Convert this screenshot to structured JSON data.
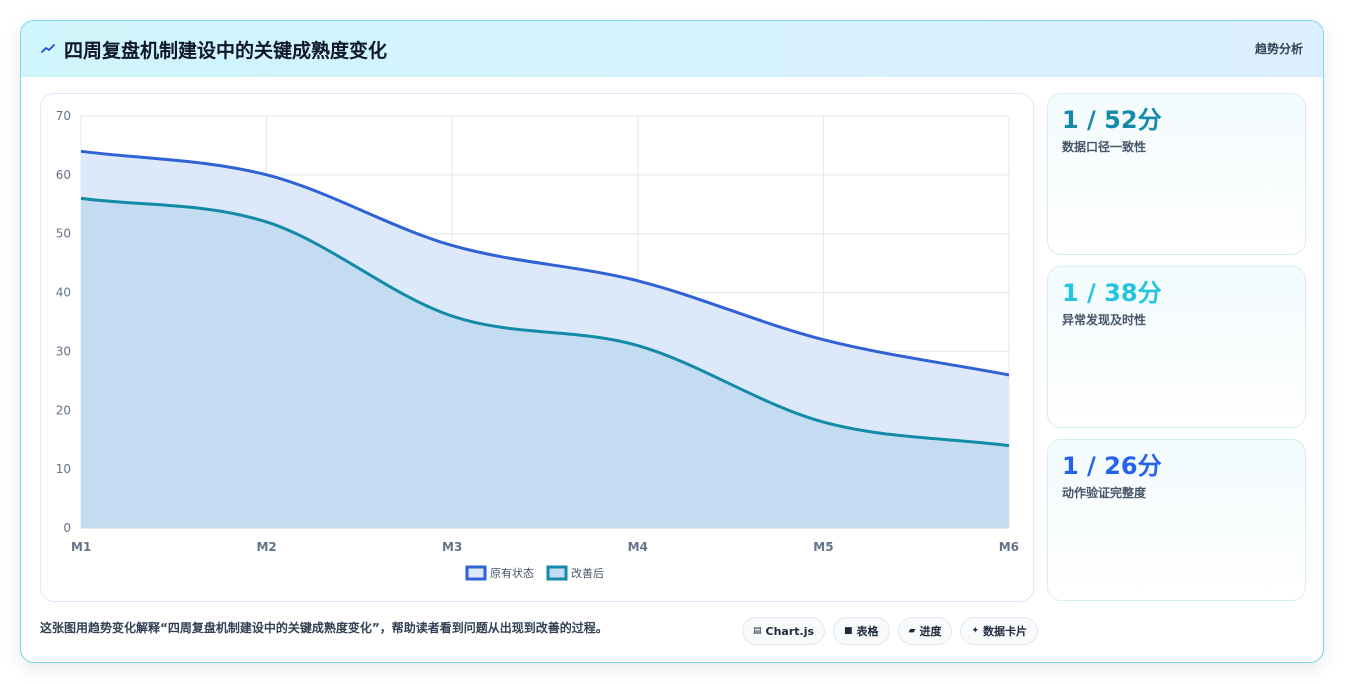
{
  "header": {
    "title": "四周复盘机制建设中的关键成熟度变化",
    "tag": "趋势分析"
  },
  "colors": {
    "accent_blue": "#2563eb",
    "accent_teal": "#0e8fa8",
    "accent_cyan": "#22d3ee"
  },
  "chart_data": {
    "type": "area",
    "categories": [
      "M1",
      "M2",
      "M3",
      "M4",
      "M5",
      "M6"
    ],
    "series": [
      {
        "name": "原有状态",
        "values": [
          64,
          60,
          48,
          42,
          32,
          26
        ],
        "color": "#2f62d6",
        "fill": "#dde8fb"
      },
      {
        "name": "改善后",
        "values": [
          56,
          52,
          36,
          31,
          18,
          14
        ],
        "color": "#128aa8",
        "fill": "#c4dcf1"
      }
    ],
    "ylim": [
      0,
      70
    ],
    "yticks": [
      0,
      10,
      20,
      30,
      40,
      50,
      60,
      70
    ],
    "grid": true,
    "legend_position": "bottom-center",
    "title": "",
    "xlabel": "",
    "ylabel": ""
  },
  "kpis": [
    {
      "value": "1 / 52分",
      "label": "数据口径一致性",
      "color": "#128aa8"
    },
    {
      "value": "1 / 38分",
      "label": "异常发现及时性",
      "color": "#22c5dc"
    },
    {
      "value": "1 / 26分",
      "label": "动作验证完整度",
      "color": "#2563eb"
    }
  ],
  "caption": "这张图用趋势变化解释“四周复盘机制建设中的关键成熟度变化”，帮助读者看到问题从出现到改善的过程。",
  "chips": [
    {
      "icon": "chart-icon",
      "glyph": "▤",
      "label": "Chart.js"
    },
    {
      "icon": "table-icon",
      "glyph": "■",
      "label": "表格"
    },
    {
      "icon": "progress-icon",
      "glyph": "▰",
      "label": "进度"
    },
    {
      "icon": "sparkle-icon",
      "glyph": "✦",
      "label": "数据卡片"
    }
  ]
}
